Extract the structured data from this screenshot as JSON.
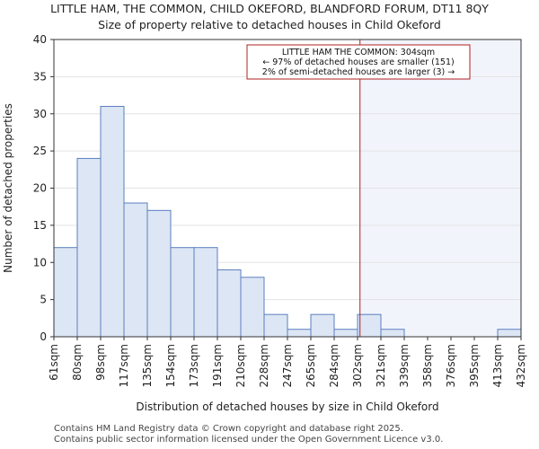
{
  "chart_data": {
    "type": "bar",
    "title": "LITTLE HAM, THE COMMON, CHILD OKEFORD, BLANDFORD FORUM, DT11 8QY",
    "subtitle": "Size of property relative to detached houses in Child Okeford",
    "xlabel": "Distribution of detached houses by size in Child Okeford",
    "ylabel": "Number of detached properties",
    "ylim": [
      0,
      40
    ],
    "yticks": [
      0,
      5,
      10,
      15,
      20,
      25,
      30,
      35,
      40
    ],
    "bin_edges": [
      "61sqm",
      "80sqm",
      "98sqm",
      "117sqm",
      "135sqm",
      "154sqm",
      "173sqm",
      "191sqm",
      "210sqm",
      "228sqm",
      "247sqm",
      "265sqm",
      "284sqm",
      "302sqm",
      "321sqm",
      "339sqm",
      "358sqm",
      "376sqm",
      "395sqm",
      "413sqm",
      "432sqm"
    ],
    "values": [
      12,
      24,
      31,
      18,
      17,
      12,
      12,
      9,
      8,
      3,
      1,
      3,
      1,
      3,
      1,
      0,
      0,
      0,
      0,
      1
    ],
    "marker": {
      "value_sqm": 304,
      "label_lines": [
        "LITTLE HAM THE COMMON: 304sqm",
        "← 97% of detached houses are smaller (151)",
        "2% of semi-detached houses are larger (3) →"
      ]
    },
    "colors": {
      "bar_fill": "#dde6f4",
      "bar_stroke": "#5a7fc0",
      "marker_line": "#b02020",
      "highlight_region": "#f2f4fc",
      "grid": "#e3e3e3"
    }
  },
  "footer": {
    "line1": "Contains HM Land Registry data © Crown copyright and database right 2025.",
    "line2": "Contains public sector information licensed under the Open Government Licence v3.0."
  }
}
